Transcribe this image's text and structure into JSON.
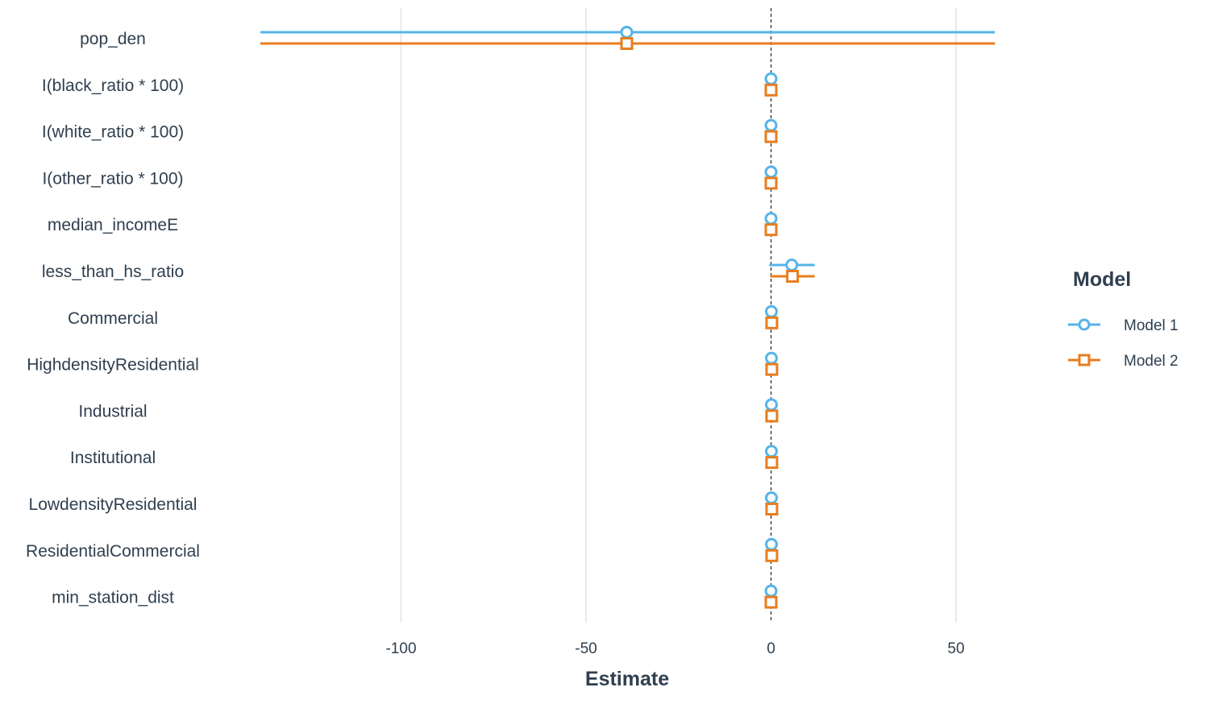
{
  "chart_data": {
    "type": "scatter",
    "subtype": "coefficient-plot",
    "xlabel": "Estimate",
    "ylabel": "",
    "xlim": [
      -140,
      62
    ],
    "xticks": [
      -100,
      -50,
      0,
      50
    ],
    "tick_labels": [
      "-100",
      "-50",
      "0",
      "50"
    ],
    "reference_line_x": 0,
    "grid": "vertical",
    "legend": {
      "title": "Model",
      "position": "right"
    },
    "terms": [
      "pop_den",
      "I(black_ratio * 100)",
      "I(white_ratio * 100)",
      "I(other_ratio * 100)",
      "median_incomeE",
      "less_than_hs_ratio",
      "Commercial",
      "HighdensityResidential",
      "Industrial",
      "Institutional",
      "LowdensityResidential",
      "ResidentialCommercial",
      "min_station_dist"
    ],
    "series": [
      {
        "name": "Model 1",
        "color": "#56b4e9",
        "marker": "circle",
        "estimates": [
          -39,
          0,
          0,
          0,
          0,
          5.6,
          0.1,
          0.1,
          0.1,
          0.1,
          0.1,
          0.1,
          0
        ],
        "ci_low": [
          -138,
          0,
          0,
          0,
          0,
          -0.5,
          0.1,
          0.1,
          0.1,
          0.1,
          0.1,
          0.1,
          0
        ],
        "ci_high": [
          60.5,
          0,
          0,
          0,
          0,
          11.8,
          0.1,
          0.1,
          0.1,
          0.1,
          0.1,
          0.1,
          0
        ]
      },
      {
        "name": "Model 2",
        "color": "#e87d1e",
        "marker": "square",
        "estimates": [
          -39,
          0,
          0,
          0,
          0,
          5.8,
          0.2,
          0.2,
          0.2,
          0.2,
          0.2,
          0.2,
          0
        ],
        "ci_low": [
          -138,
          0,
          0,
          0,
          0,
          -0.2,
          0.2,
          0.2,
          0.2,
          0.2,
          0.2,
          0.2,
          0
        ],
        "ci_high": [
          60.5,
          0,
          0,
          0,
          0,
          11.8,
          0.2,
          0.2,
          0.2,
          0.2,
          0.2,
          0.2,
          0
        ]
      }
    ]
  }
}
